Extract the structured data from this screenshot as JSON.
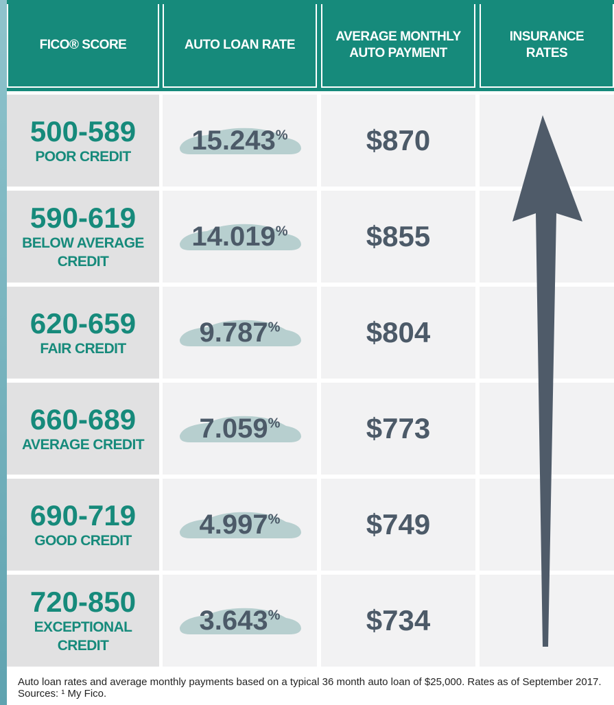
{
  "header": {
    "columns": [
      "FICO® SCORE",
      "AUTO LOAN RATE",
      "AVERAGE MONTHLY AUTO PAYMENT",
      "INSURANCE RATES"
    ]
  },
  "rows": [
    {
      "score": "500-589",
      "credit": "POOR CREDIT",
      "rate": "15.243",
      "percent": "%",
      "payment": "$870"
    },
    {
      "score": "590-619",
      "credit": "BELOW AVERAGE CREDIT",
      "rate": "14.019",
      "percent": "%",
      "payment": "$855"
    },
    {
      "score": "620-659",
      "credit": "FAIR CREDIT",
      "rate": "9.787",
      "percent": "%",
      "payment": "$804"
    },
    {
      "score": "660-689",
      "credit": "AVERAGE CREDIT",
      "rate": "7.059",
      "percent": "%",
      "payment": "$773"
    },
    {
      "score": "690-719",
      "credit": "GOOD CREDIT",
      "rate": "4.997",
      "percent": "%",
      "payment": "$749"
    },
    {
      "score": "720-850",
      "credit": "EXCEPTIONAL CREDIT",
      "rate": "3.643",
      "percent": "%",
      "payment": "$734"
    }
  ],
  "footnote": "Auto loan rates and average monthly payments based on a typical 36 month auto loan of $25,000. Rates as of September 2017. Sources: ¹ My Fico."
}
